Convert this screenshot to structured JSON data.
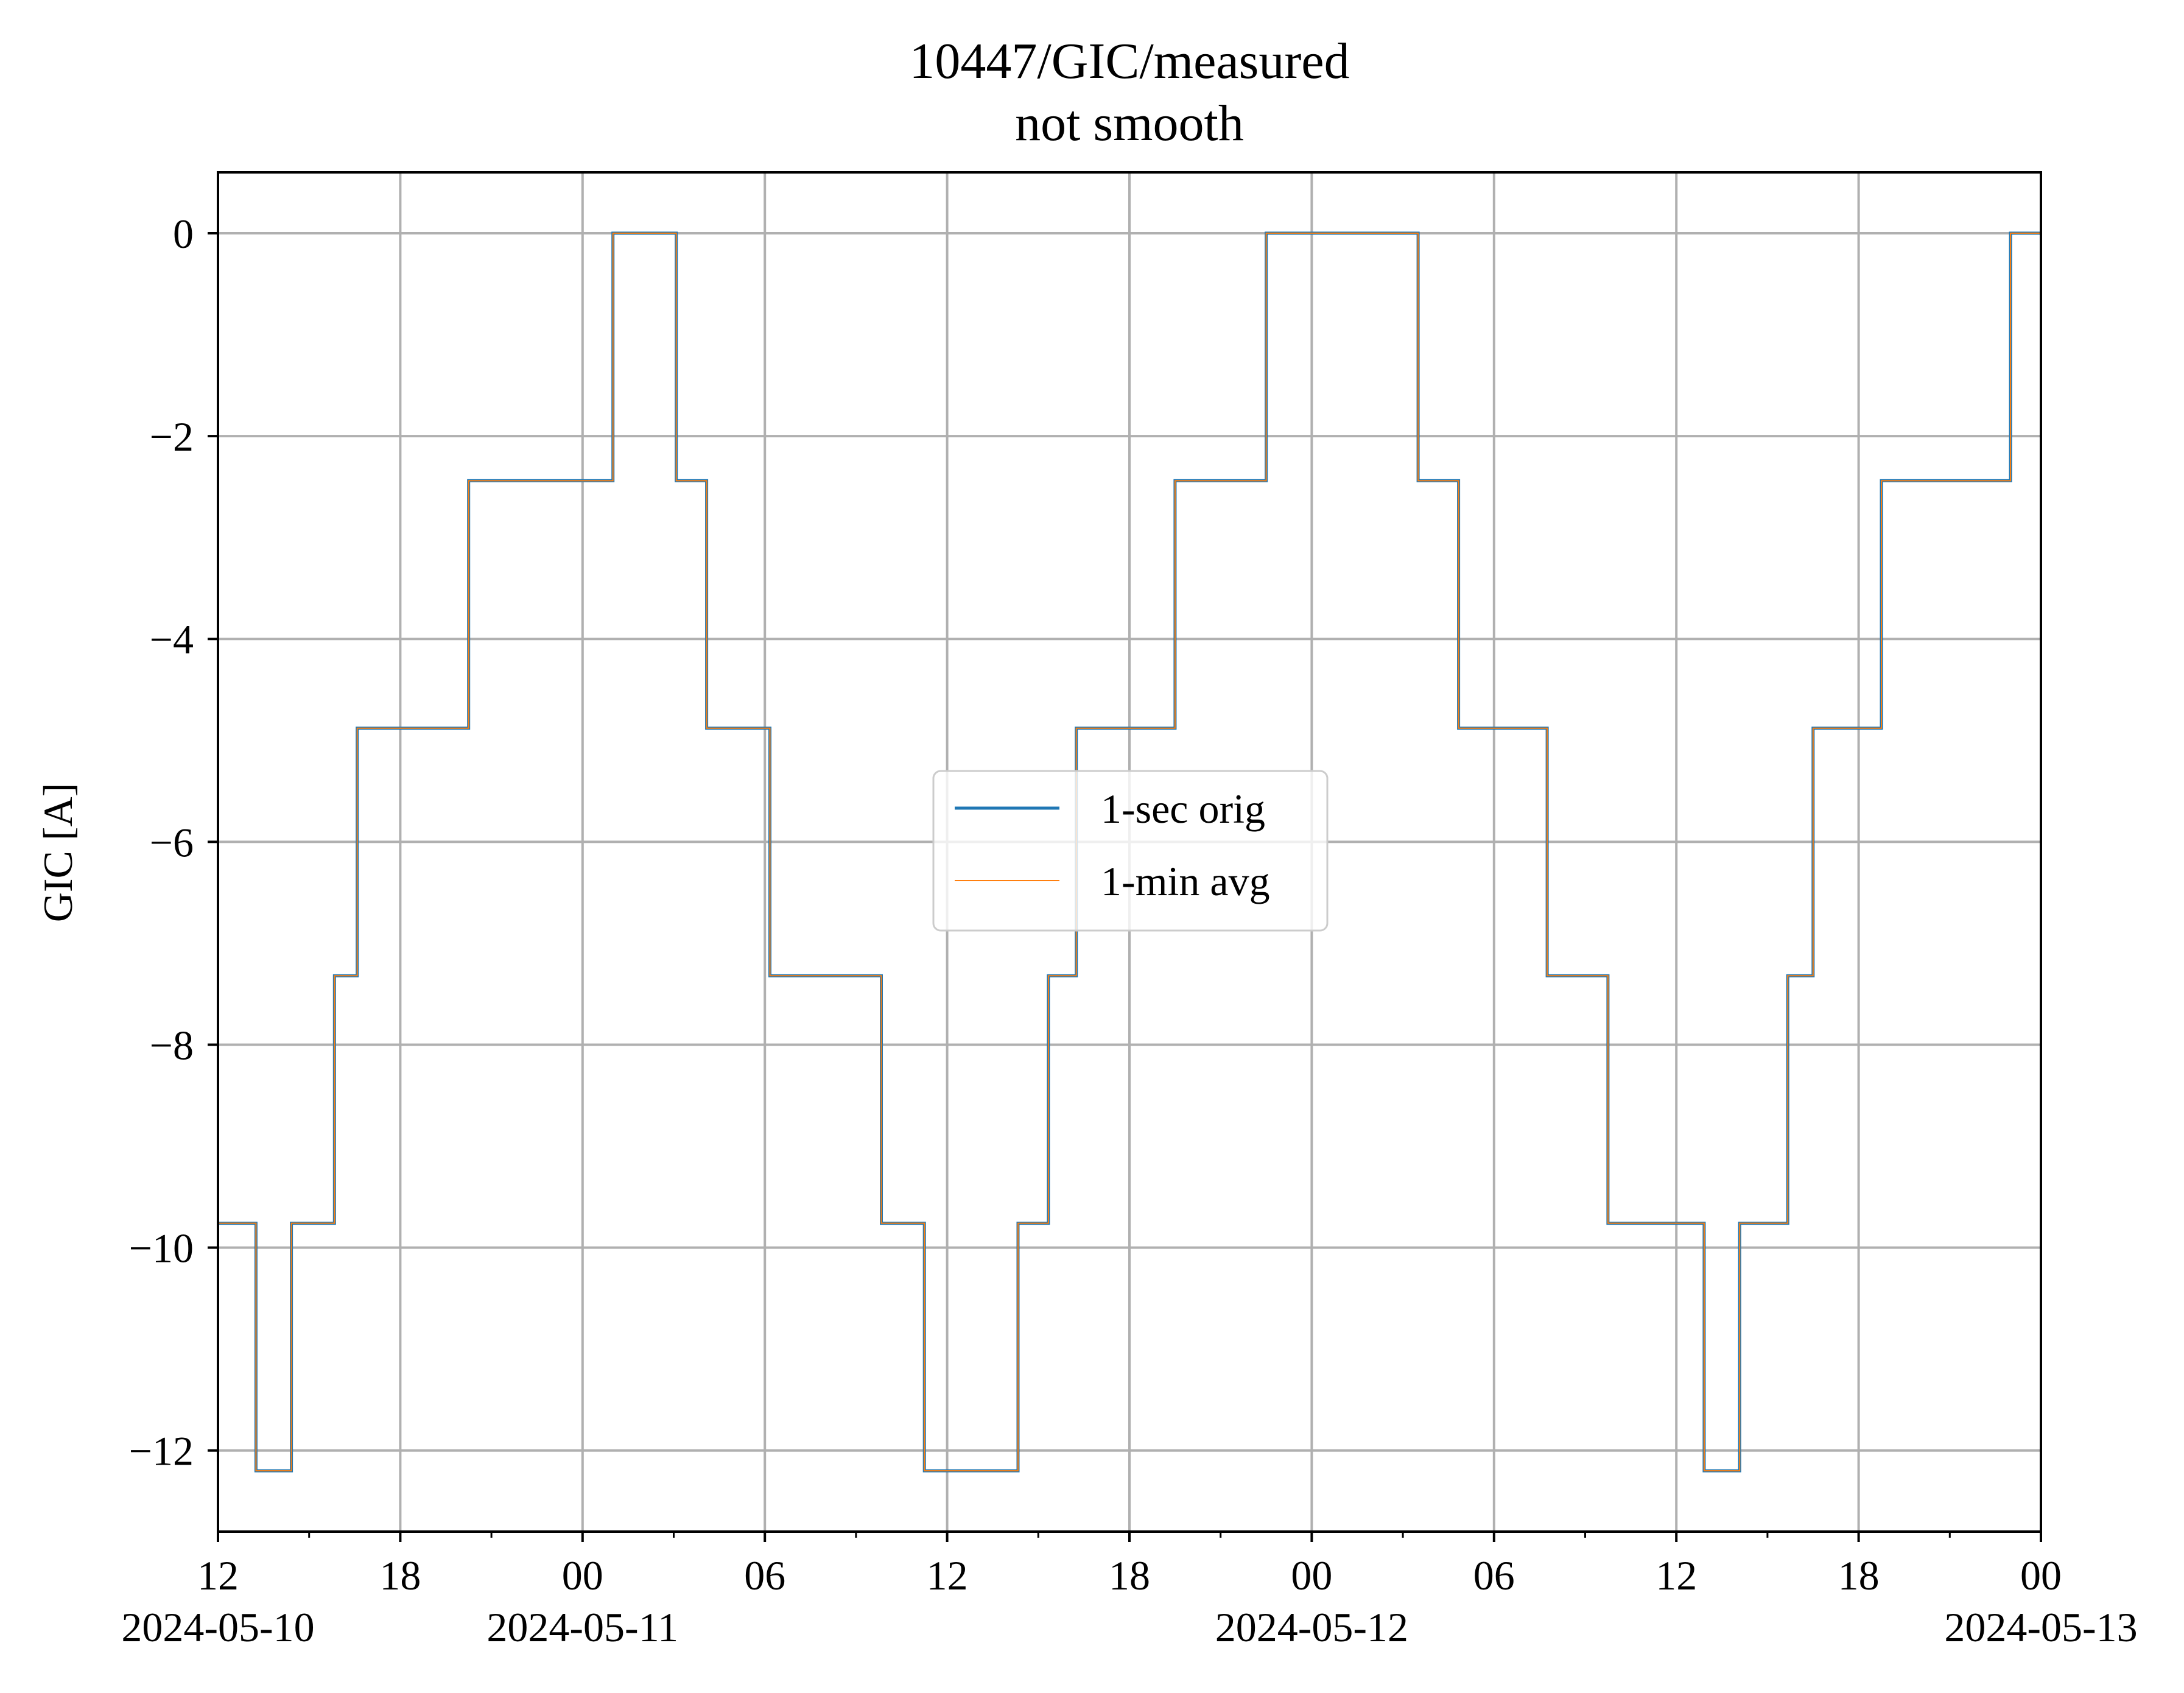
{
  "chart_data": {
    "type": "line",
    "title_lines": [
      "10447/GIC/measured",
      "not smooth"
    ],
    "ylabel": "GIC [A]",
    "xlabel": "",
    "xlim": [
      "2024-05-10 12:00",
      "2024-05-13 00:00"
    ],
    "ylim": [
      -12.8,
      0.6
    ],
    "grid": true,
    "legend_position": "center",
    "x_ticks": [
      {
        "value": "2024-05-10 12:00",
        "label": "12",
        "date_label": "2024-05-10"
      },
      {
        "value": "2024-05-10 18:00",
        "label": "18",
        "date_label": ""
      },
      {
        "value": "2024-05-11 00:00",
        "label": "00",
        "date_label": "2024-05-11"
      },
      {
        "value": "2024-05-11 06:00",
        "label": "06",
        "date_label": ""
      },
      {
        "value": "2024-05-11 12:00",
        "label": "12",
        "date_label": ""
      },
      {
        "value": "2024-05-11 18:00",
        "label": "18",
        "date_label": ""
      },
      {
        "value": "2024-05-12 00:00",
        "label": "00",
        "date_label": "2024-05-12"
      },
      {
        "value": "2024-05-12 06:00",
        "label": "06",
        "date_label": ""
      },
      {
        "value": "2024-05-12 12:00",
        "label": "12",
        "date_label": ""
      },
      {
        "value": "2024-05-12 18:00",
        "label": "18",
        "date_label": ""
      },
      {
        "value": "2024-05-13 00:00",
        "label": "00",
        "date_label": "2024-05-13"
      }
    ],
    "x_minor_ticks": [
      "2024-05-10 15:00",
      "2024-05-10 21:00",
      "2024-05-11 03:00",
      "2024-05-11 09:00",
      "2024-05-11 15:00",
      "2024-05-11 21:00",
      "2024-05-12 03:00",
      "2024-05-12 09:00",
      "2024-05-12 15:00",
      "2024-05-12 21:00"
    ],
    "y_ticks": [
      {
        "value": 0,
        "label": "0"
      },
      {
        "value": -2,
        "label": "−2"
      },
      {
        "value": -4,
        "label": "−4"
      },
      {
        "value": -6,
        "label": "−6"
      },
      {
        "value": -8,
        "label": "−8"
      },
      {
        "value": -10,
        "label": "−10"
      },
      {
        "value": -12,
        "label": "−12"
      }
    ],
    "series": [
      {
        "name": "1-sec orig",
        "color": "#1f77b4",
        "line_width": 5,
        "step": "post",
        "points": [
          [
            "2024-05-10 12:00",
            -9.76
          ],
          [
            "2024-05-10 13:15",
            -12.2
          ],
          [
            "2024-05-10 14:25",
            -9.76
          ],
          [
            "2024-05-10 15:50",
            -7.32
          ],
          [
            "2024-05-10 16:35",
            -4.88
          ],
          [
            "2024-05-10 20:15",
            -2.44
          ],
          [
            "2024-05-11 01:00",
            0
          ],
          [
            "2024-05-11 03:05",
            -2.44
          ],
          [
            "2024-05-11 04:05",
            -4.88
          ],
          [
            "2024-05-11 06:10",
            -7.32
          ],
          [
            "2024-05-11 09:50",
            -9.76
          ],
          [
            "2024-05-11 11:15",
            -12.2
          ],
          [
            "2024-05-11 14:20",
            -9.76
          ],
          [
            "2024-05-11 15:20",
            -7.32
          ],
          [
            "2024-05-11 16:15",
            -4.88
          ],
          [
            "2024-05-11 19:30",
            -2.44
          ],
          [
            "2024-05-11 22:30",
            0
          ],
          [
            "2024-05-12 03:30",
            -2.44
          ],
          [
            "2024-05-12 04:50",
            -4.88
          ],
          [
            "2024-05-12 07:45",
            -7.32
          ],
          [
            "2024-05-12 09:45",
            -9.76
          ],
          [
            "2024-05-12 12:55",
            -12.2
          ],
          [
            "2024-05-12 14:05",
            -9.76
          ],
          [
            "2024-05-12 15:40",
            -7.32
          ],
          [
            "2024-05-12 16:30",
            -4.88
          ],
          [
            "2024-05-12 18:45",
            -2.44
          ],
          [
            "2024-05-12 23:00",
            0
          ],
          [
            "2024-05-13 00:00",
            0
          ]
        ]
      },
      {
        "name": "1-min avg",
        "color": "#ff7f0e",
        "line_width": 2,
        "step": "post",
        "points": [
          [
            "2024-05-10 12:00",
            -9.76
          ],
          [
            "2024-05-10 13:15",
            -12.2
          ],
          [
            "2024-05-10 14:25",
            -9.76
          ],
          [
            "2024-05-10 15:50",
            -7.32
          ],
          [
            "2024-05-10 16:35",
            -4.88
          ],
          [
            "2024-05-10 20:15",
            -2.44
          ],
          [
            "2024-05-11 01:00",
            0
          ],
          [
            "2024-05-11 03:05",
            -2.44
          ],
          [
            "2024-05-11 04:05",
            -4.88
          ],
          [
            "2024-05-11 06:10",
            -7.32
          ],
          [
            "2024-05-11 09:50",
            -9.76
          ],
          [
            "2024-05-11 11:15",
            -12.2
          ],
          [
            "2024-05-11 14:20",
            -9.76
          ],
          [
            "2024-05-11 15:20",
            -7.32
          ],
          [
            "2024-05-11 16:15",
            -4.88
          ],
          [
            "2024-05-11 19:30",
            -2.44
          ],
          [
            "2024-05-11 22:30",
            0
          ],
          [
            "2024-05-12 03:30",
            -2.44
          ],
          [
            "2024-05-12 04:50",
            -4.88
          ],
          [
            "2024-05-12 07:45",
            -7.32
          ],
          [
            "2024-05-12 09:45",
            -9.76
          ],
          [
            "2024-05-12 12:55",
            -12.2
          ],
          [
            "2024-05-12 14:05",
            -9.76
          ],
          [
            "2024-05-12 15:40",
            -7.32
          ],
          [
            "2024-05-12 16:30",
            -4.88
          ],
          [
            "2024-05-12 18:45",
            -2.44
          ],
          [
            "2024-05-12 23:00",
            0
          ],
          [
            "2024-05-13 00:00",
            0
          ]
        ]
      }
    ]
  }
}
